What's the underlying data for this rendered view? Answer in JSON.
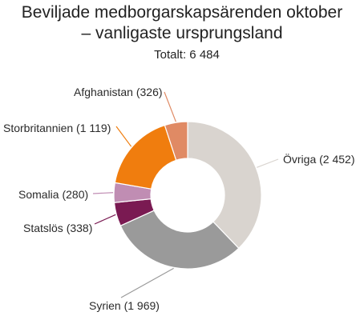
{
  "chart_data": {
    "type": "pie",
    "variant": "donut",
    "title_line1": "Beviljade medborgarskapsärenden oktober",
    "title_line2": "– vanligaste ursprungsland",
    "subtitle": "Totalt: 6 484",
    "slices": [
      {
        "name": "Övriga",
        "value": 2452,
        "label": "Övriga (2 452)",
        "color": "#d9d4cf"
      },
      {
        "name": "Syrien",
        "value": 1969,
        "label": "Syrien (1 969)",
        "color": "#9a9a9a"
      },
      {
        "name": "Statslös",
        "value": 338,
        "label": "Statslös (338)",
        "color": "#7a1a52"
      },
      {
        "name": "Somalia",
        "value": 280,
        "label": "Somalia (280)",
        "color": "#c08db3"
      },
      {
        "name": "Storbritannien",
        "value": 1119,
        "label": "Storbritannien (1 119)",
        "color": "#f07d0e"
      },
      {
        "name": "Afghanistan",
        "value": 326,
        "label": "Afghanistan (326)",
        "color": "#e08a64"
      }
    ]
  }
}
